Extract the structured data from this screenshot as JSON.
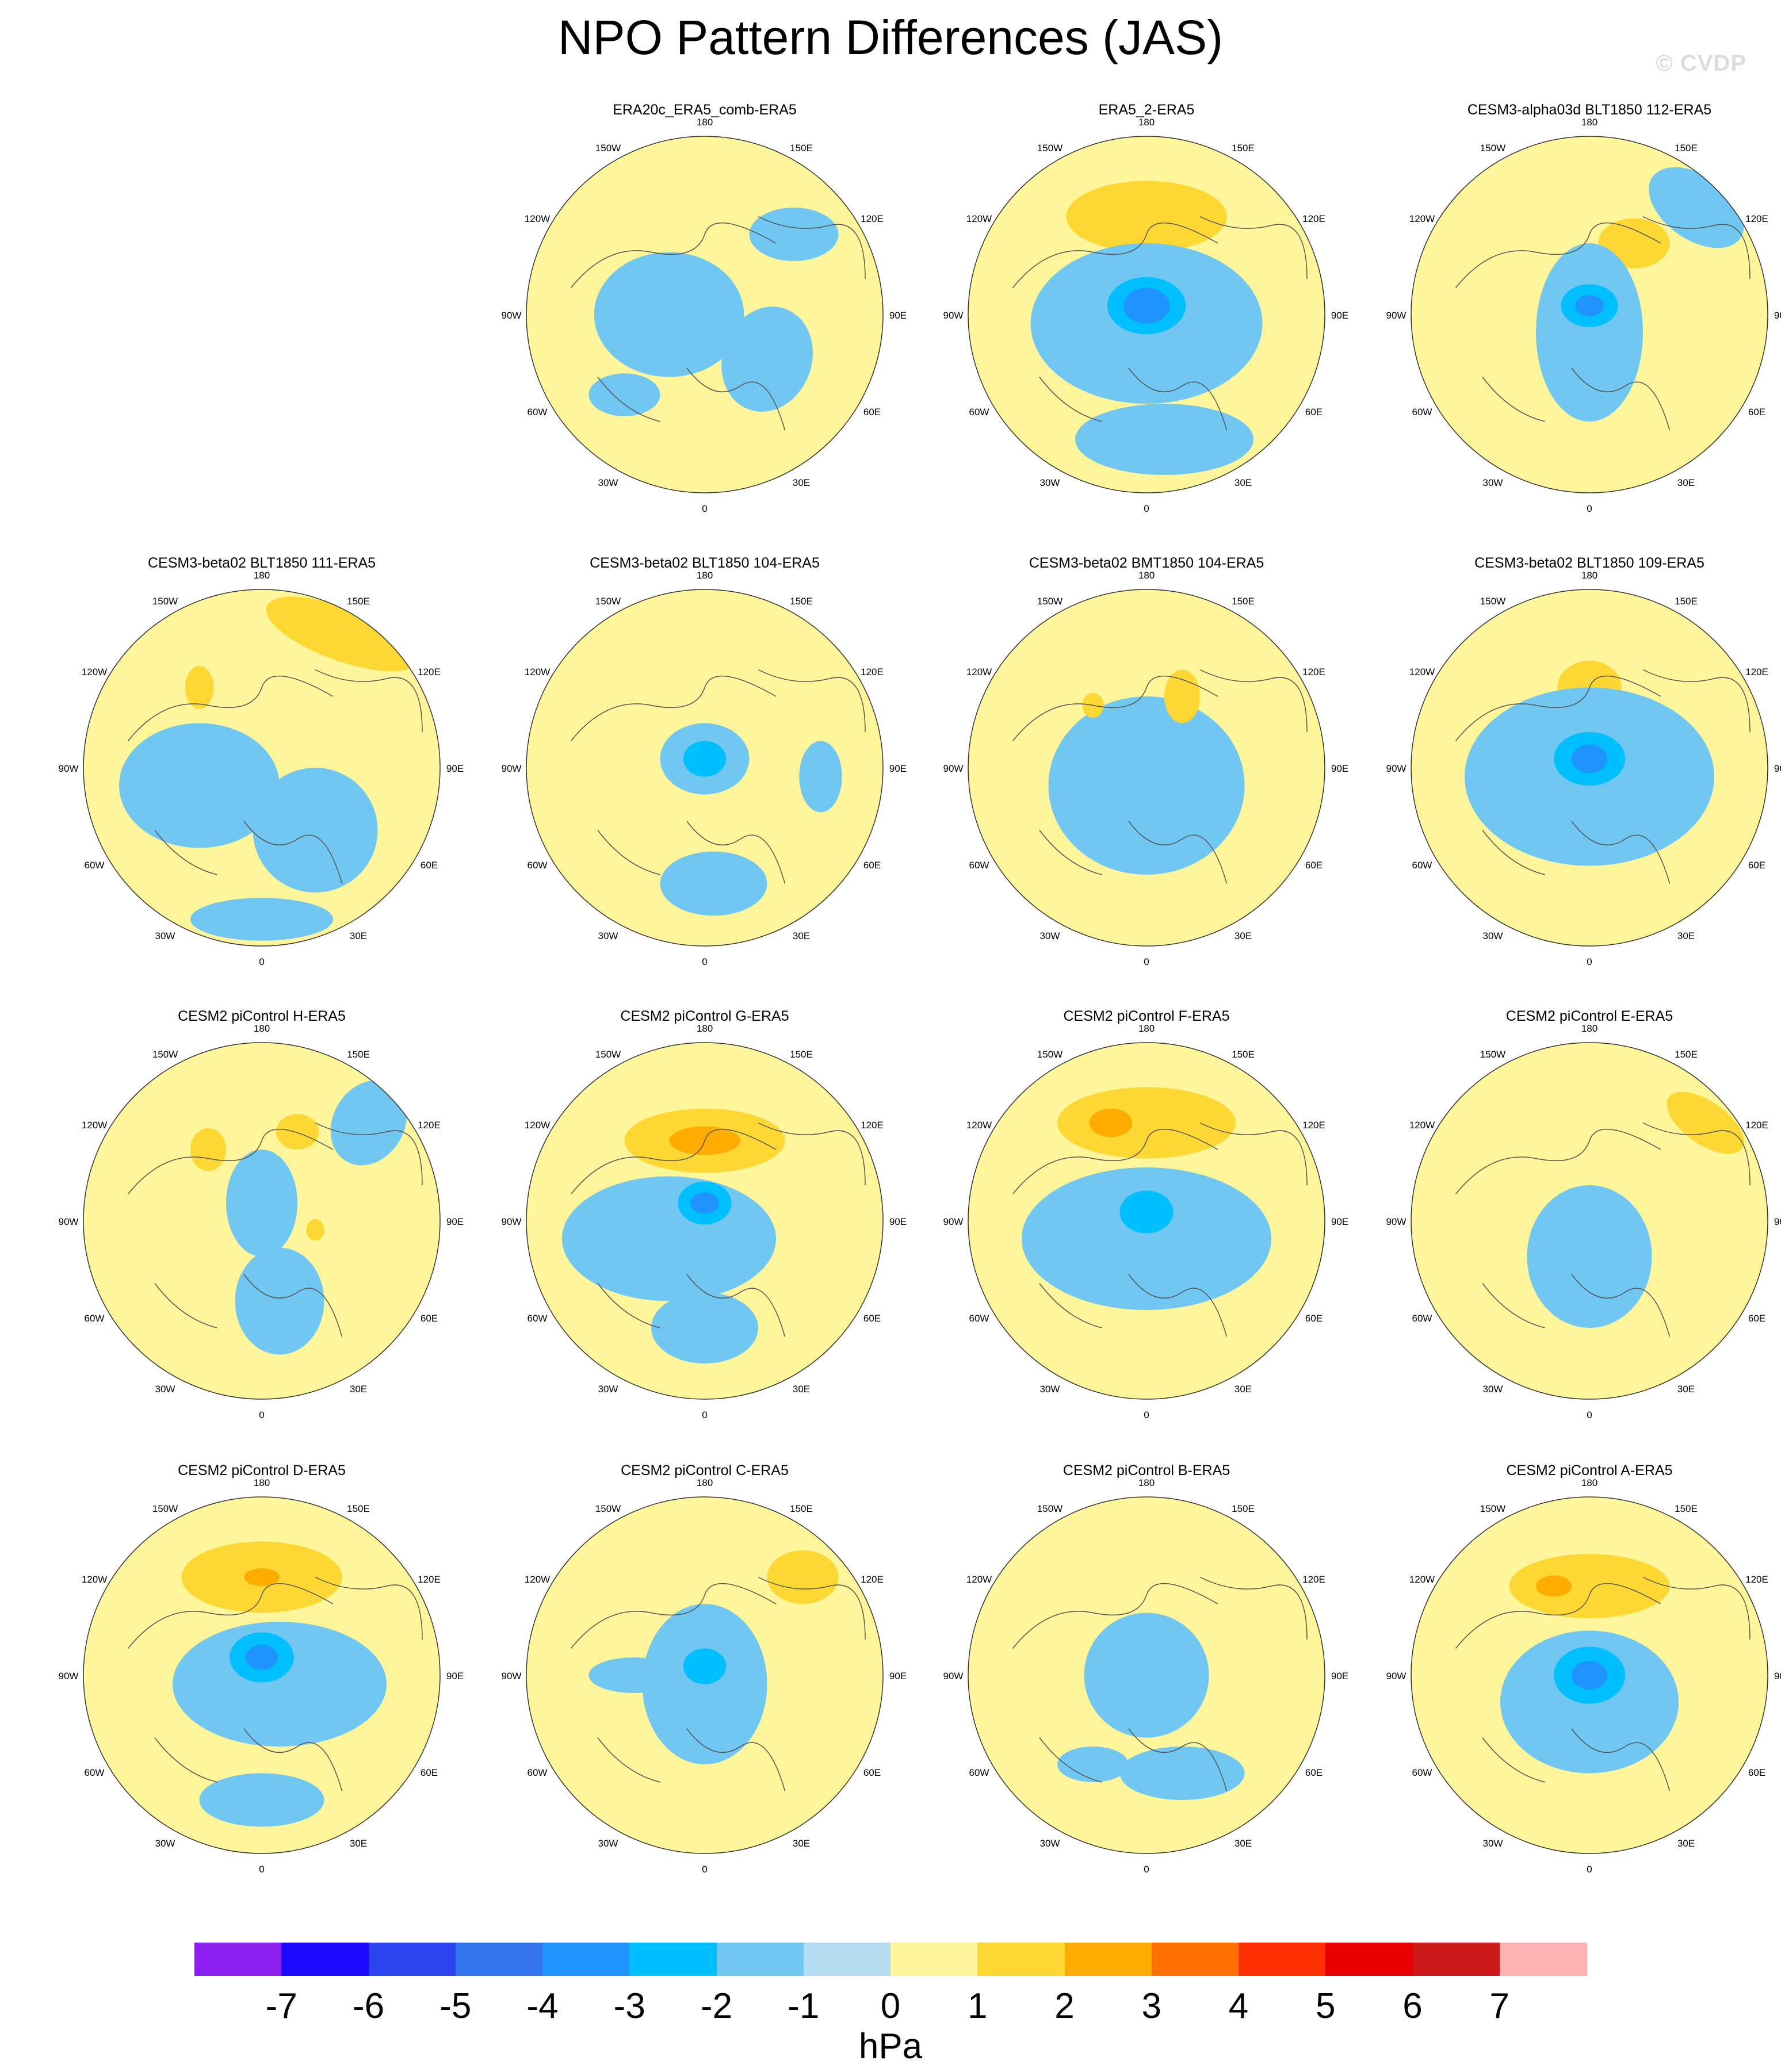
{
  "title": "NPO Pattern Differences (JAS)",
  "watermark": "© CVDP",
  "units": "hPa",
  "contour_levels": [
    "-7",
    "-6",
    "-5",
    "-4",
    "-3",
    "-2",
    "-1",
    "0",
    "1",
    "2",
    "3",
    "4",
    "5",
    "6",
    "7"
  ],
  "colors": {
    "bins": [
      "#8a1ff0",
      "#1a08ff",
      "#2b44ef",
      "#3575ee",
      "#1f93ff",
      "#00bfff",
      "#6fc7f2",
      "#b5ddf2",
      "#fff59a",
      "#fed832",
      "#feac00",
      "#ff7000",
      "#ff3000",
      "#e80000",
      "#cc1a1a",
      "#ffb3b3"
    ],
    "land_outline": "#555555",
    "border": "#333333"
  },
  "meridian_labels": [
    "180",
    "150E",
    "120E",
    "90E",
    "60E",
    "30E",
    "0",
    "30W",
    "60W",
    "90W",
    "120W",
    "150W"
  ],
  "panels": [
    {
      "title": "ERA20c_ERA5_comb-ERA5",
      "row": 0,
      "col": 1
    },
    {
      "title": "ERA5_2-ERA5",
      "row": 0,
      "col": 2
    },
    {
      "title": "CESM3-alpha03d BLT1850 112-ERA5",
      "row": 0,
      "col": 3
    },
    {
      "title": "CESM3-beta02 BLT1850 111-ERA5",
      "row": 1,
      "col": 0
    },
    {
      "title": "CESM3-beta02 BLT1850 104-ERA5",
      "row": 1,
      "col": 1
    },
    {
      "title": "CESM3-beta02 BMT1850 104-ERA5",
      "row": 1,
      "col": 2
    },
    {
      "title": "CESM3-beta02 BLT1850 109-ERA5",
      "row": 1,
      "col": 3
    },
    {
      "title": "CESM2 piControl H-ERA5",
      "row": 2,
      "col": 0
    },
    {
      "title": "CESM2 piControl G-ERA5",
      "row": 2,
      "col": 1
    },
    {
      "title": "CESM2 piControl F-ERA5",
      "row": 2,
      "col": 2
    },
    {
      "title": "CESM2 piControl E-ERA5",
      "row": 2,
      "col": 3
    },
    {
      "title": "CESM2 piControl D-ERA5",
      "row": 3,
      "col": 0
    },
    {
      "title": "CESM2 piControl C-ERA5",
      "row": 3,
      "col": 1
    },
    {
      "title": "CESM2 piControl B-ERA5",
      "row": 3,
      "col": 2
    },
    {
      "title": "CESM2 piControl A-ERA5",
      "row": 3,
      "col": 3
    }
  ]
}
